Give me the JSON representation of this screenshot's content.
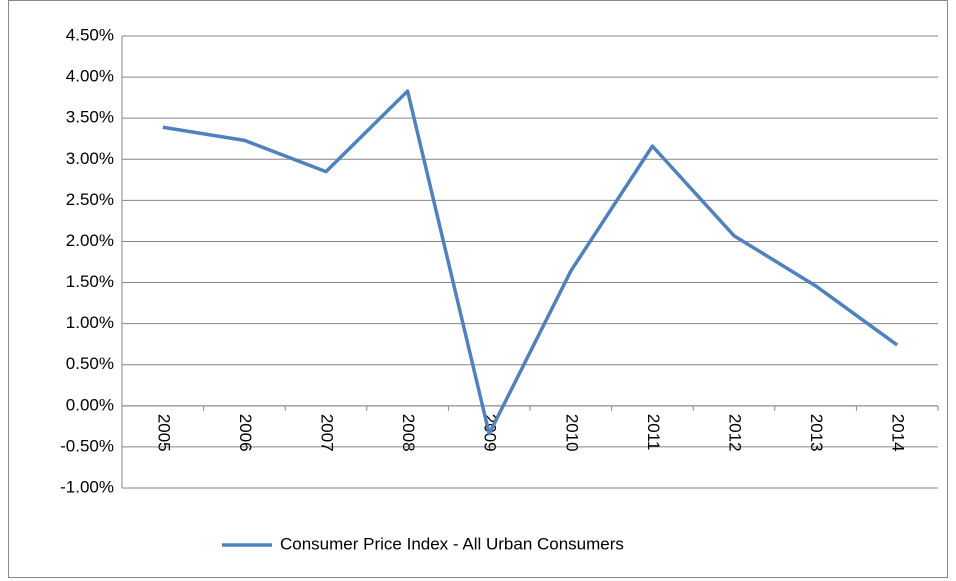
{
  "chart_data": {
    "type": "line",
    "categories": [
      "2005",
      "2006",
      "2007",
      "2008",
      "2009",
      "2010",
      "2011",
      "2012",
      "2013",
      "2014"
    ],
    "series": [
      {
        "name": "Consumer Price Index - All Urban Consumers",
        "color": "#4f81bd",
        "values": [
          3.39,
          3.23,
          2.85,
          3.83,
          -0.34,
          1.64,
          3.16,
          2.07,
          1.46,
          0.74
        ]
      }
    ],
    "ylim": [
      -1,
      4.5
    ],
    "yticks": [
      {
        "value": -1,
        "label": "-1.00%"
      },
      {
        "value": -0.5,
        "label": "-0.50%"
      },
      {
        "value": 0,
        "label": "0.00%"
      },
      {
        "value": 0.5,
        "label": "0.50%"
      },
      {
        "value": 1,
        "label": "1.00%"
      },
      {
        "value": 1.5,
        "label": "1.50%"
      },
      {
        "value": 2,
        "label": "2.00%"
      },
      {
        "value": 2.5,
        "label": "2.50%"
      },
      {
        "value": 3,
        "label": "3.00%"
      },
      {
        "value": 3.5,
        "label": "3.50%"
      },
      {
        "value": 4,
        "label": "4.00%"
      },
      {
        "value": 4.5,
        "label": "4.50%"
      }
    ],
    "grid": true,
    "legend": "bottom"
  }
}
